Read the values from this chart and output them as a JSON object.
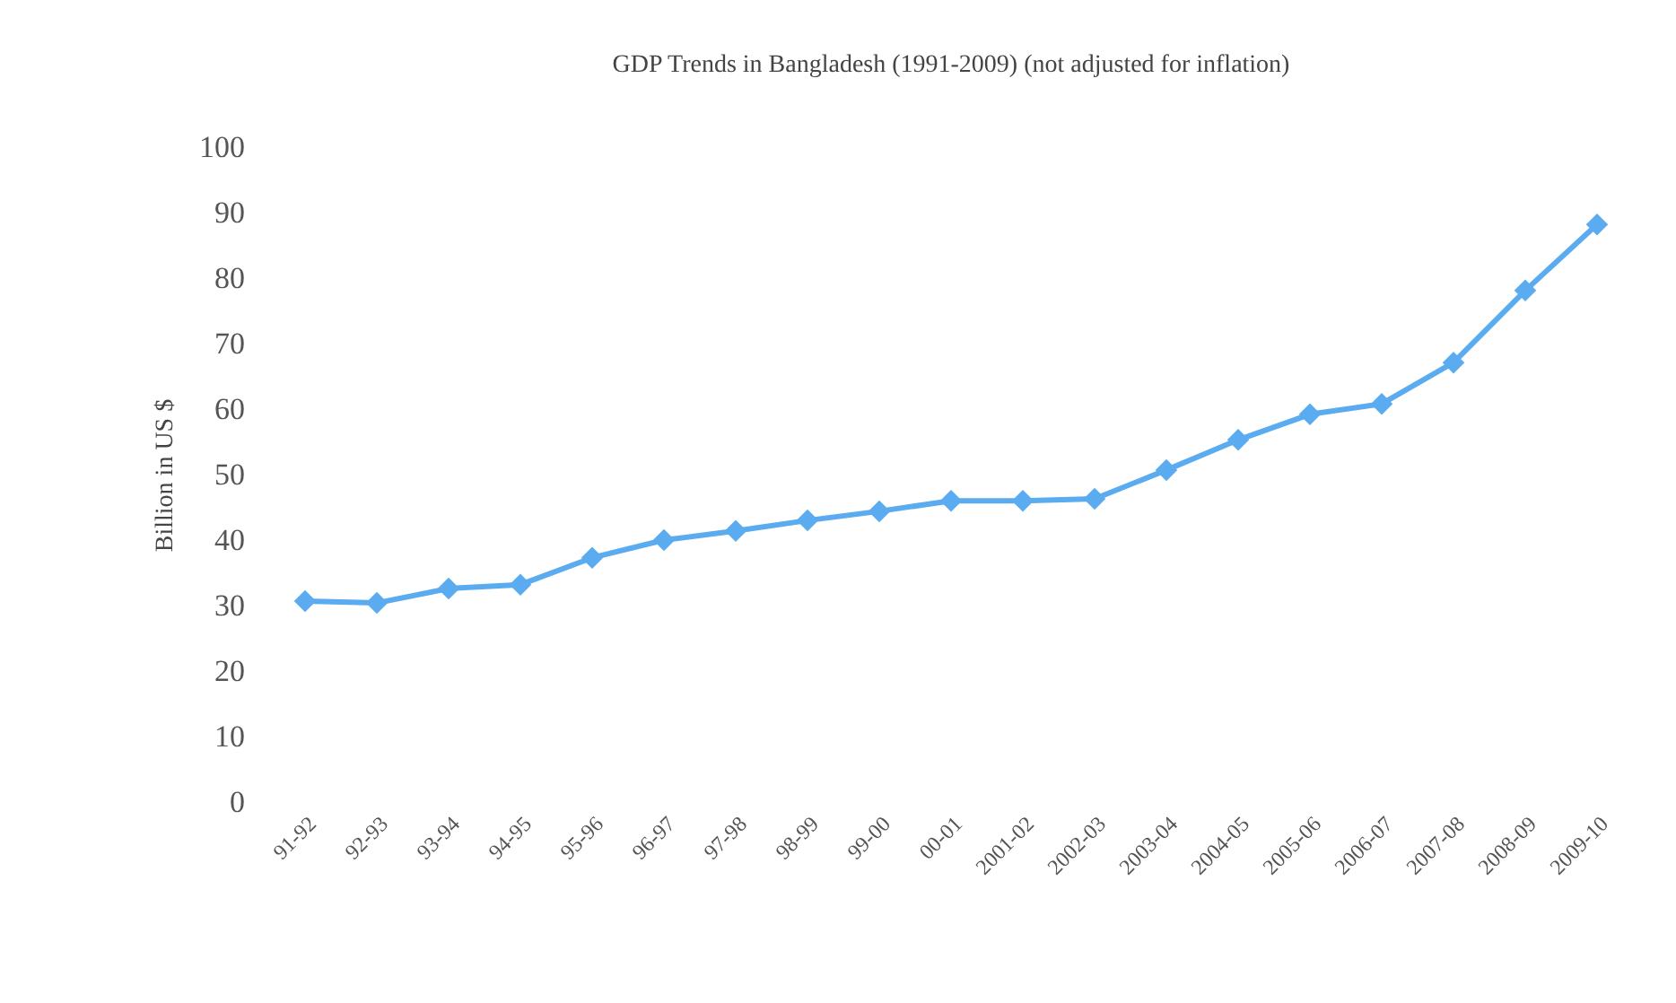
{
  "chart_data": {
    "type": "line",
    "title": "GDP Trends in Bangladesh (1991-2009) (not adjusted for inflation)",
    "ylabel": "Billion in US $",
    "categories": [
      "91-92",
      "92-93",
      "93-94",
      "94-95",
      "95-96",
      "96-97",
      "97-98",
      "98-99",
      "99-00",
      "00-01",
      "2001-02",
      "2002-03",
      "2003-04",
      "2004-05",
      "2005-06",
      "2006-07",
      "2007-08",
      "2008-09",
      "2009-10"
    ],
    "series": [
      {
        "color": "#5aabf0",
        "values": [
          30.7,
          30.4,
          32.6,
          33.2,
          37.3,
          40,
          41.4,
          43,
          44.4,
          46,
          46,
          46.3,
          50.7,
          55.3,
          59.2,
          60.8,
          67.1,
          78.1,
          88.2
        ]
      }
    ],
    "ylim": [
      0,
      100
    ],
    "yticks": [
      0,
      10,
      20,
      30,
      40,
      50,
      60,
      70,
      80,
      90,
      100
    ],
    "marker": "diamond",
    "line_style": "solid"
  }
}
